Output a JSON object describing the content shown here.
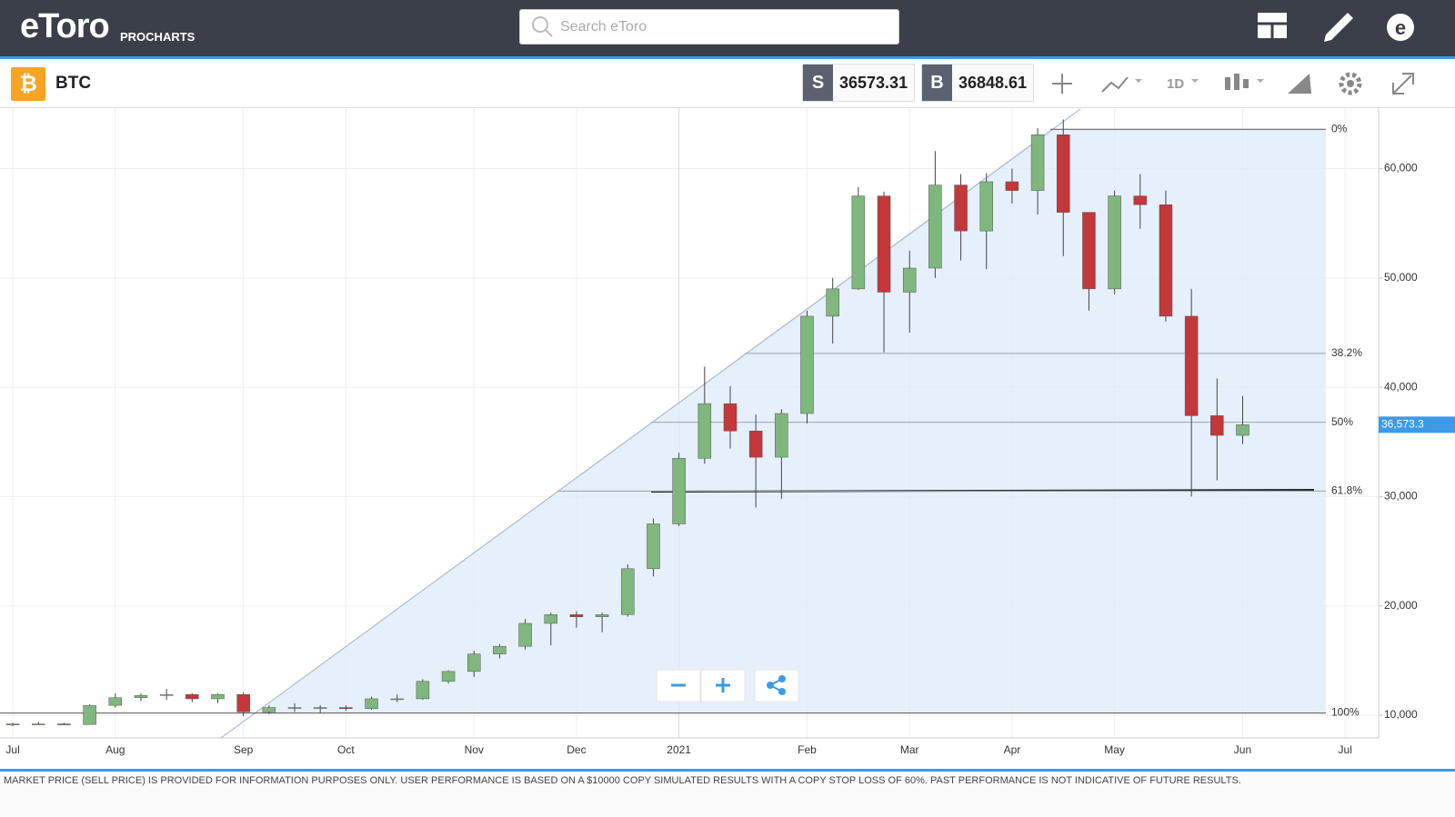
{
  "header": {
    "logo": "eToro",
    "product": "PROCHARTS",
    "search_placeholder": "Search eToro"
  },
  "toolbar": {
    "symbol": "BTC",
    "sell_label": "S",
    "sell_price": "36573.31",
    "buy_label": "B",
    "buy_price": "36848.61",
    "interval": "1D"
  },
  "footer": {
    "disclaimer": "MARKET PRICE (SELL PRICE) IS PROVIDED FOR INFORMATION PURPOSES ONLY. USER PERFORMANCE IS BASED ON A $10000 COPY SIMULATED RESULTS WITH A COPY STOP LOSS OF 60%. PAST PERFORMANCE IS NOT INDICATIVE OF FUTURE RESULTS."
  },
  "chart_data": {
    "type": "candlestick",
    "categories": [
      "Jul",
      null,
      null,
      null,
      "Aug",
      null,
      null,
      null,
      null,
      "Sep",
      null,
      null,
      null,
      "Oct",
      null,
      null,
      null,
      null,
      "Nov",
      null,
      null,
      null,
      "Dec",
      null,
      null,
      null,
      "2021",
      null,
      null,
      null,
      null,
      "Feb",
      null,
      null,
      null,
      "Mar",
      null,
      null,
      null,
      "Apr",
      null,
      null,
      null,
      "May",
      null,
      null,
      null,
      null,
      "Jun",
      null,
      null,
      null,
      "Jul"
    ],
    "open": [
      9100,
      9200,
      9200,
      9150,
      10900,
      11600,
      11800,
      11900,
      11500,
      11900,
      10300,
      10700,
      10700,
      10700,
      10600,
      11500,
      11500,
      13100,
      14000,
      15600,
      16300,
      18400,
      19200,
      19000,
      19200,
      23400,
      27500,
      33500,
      38500,
      36000,
      33600,
      37600,
      46500,
      49000,
      57500,
      48700,
      50900,
      58500,
      54300,
      58800,
      58000,
      63100,
      56000,
      49000,
      57500,
      56700,
      46500,
      37400,
      35600,
      null,
      null,
      null,
      null
    ],
    "high": [
      9300,
      9400,
      9300,
      11000,
      12000,
      12000,
      12400,
      12000,
      12000,
      12100,
      10900,
      11100,
      10900,
      10900,
      11700,
      11900,
      13300,
      14100,
      15900,
      16500,
      18800,
      19400,
      19500,
      19400,
      23800,
      28000,
      34000,
      41900,
      40100,
      37500,
      38000,
      47000,
      50000,
      58300,
      57900,
      52500,
      61600,
      59500,
      59600,
      60000,
      63700,
      64500,
      56000,
      58000,
      59500,
      58000,
      49000,
      40800,
      39200,
      null,
      null,
      null,
      null
    ],
    "low": [
      9000,
      9100,
      9100,
      9150,
      10700,
      11300,
      11400,
      11200,
      11100,
      9900,
      10100,
      10300,
      10200,
      10400,
      10500,
      11200,
      11400,
      12900,
      13500,
      15200,
      16000,
      16400,
      18000,
      17600,
      19000,
      22700,
      27300,
      33000,
      34400,
      29000,
      29800,
      36700,
      44000,
      48900,
      43200,
      45000,
      50000,
      51600,
      50800,
      56800,
      55800,
      52000,
      47000,
      48500,
      54500,
      46000,
      30000,
      31500,
      34800,
      null,
      null,
      null,
      null
    ],
    "close": [
      9200,
      9200,
      9150,
      10900,
      11600,
      11800,
      11900,
      11500,
      11900,
      10300,
      10700,
      10700,
      10700,
      10600,
      11500,
      11500,
      13100,
      14000,
      15600,
      16300,
      18400,
      19200,
      19000,
      19200,
      23400,
      27500,
      33500,
      38500,
      36000,
      33600,
      37600,
      46500,
      49000,
      57500,
      48700,
      50900,
      58500,
      54300,
      58800,
      58000,
      63100,
      56000,
      49000,
      57500,
      56700,
      46500,
      37400,
      35600,
      36573,
      null,
      null,
      null,
      null
    ],
    "up_color": "#7fb77e",
    "down_color": "#c4373a",
    "ylim": [
      7920,
      65450
    ],
    "yticks": [
      {
        "value": 10000,
        "label": "10,000"
      },
      {
        "value": 20000,
        "label": "20,000"
      },
      {
        "value": 30000,
        "label": "30,000"
      },
      {
        "value": 40000,
        "label": "40,000"
      },
      {
        "value": 50000,
        "label": "50,000"
      },
      {
        "value": 60000,
        "label": "60,000"
      }
    ],
    "grid": true,
    "fib_levels": [
      {
        "value": 63600,
        "label": "0%"
      },
      {
        "value": 43100,
        "label": "38.2%"
      },
      {
        "value": 36800,
        "label": "50%"
      },
      {
        "value": 30500,
        "label": "61.8%"
      },
      {
        "value": 10200,
        "label": "100%"
      }
    ],
    "last_price": {
      "value": 36573.3,
      "label": "36,573.3"
    }
  }
}
